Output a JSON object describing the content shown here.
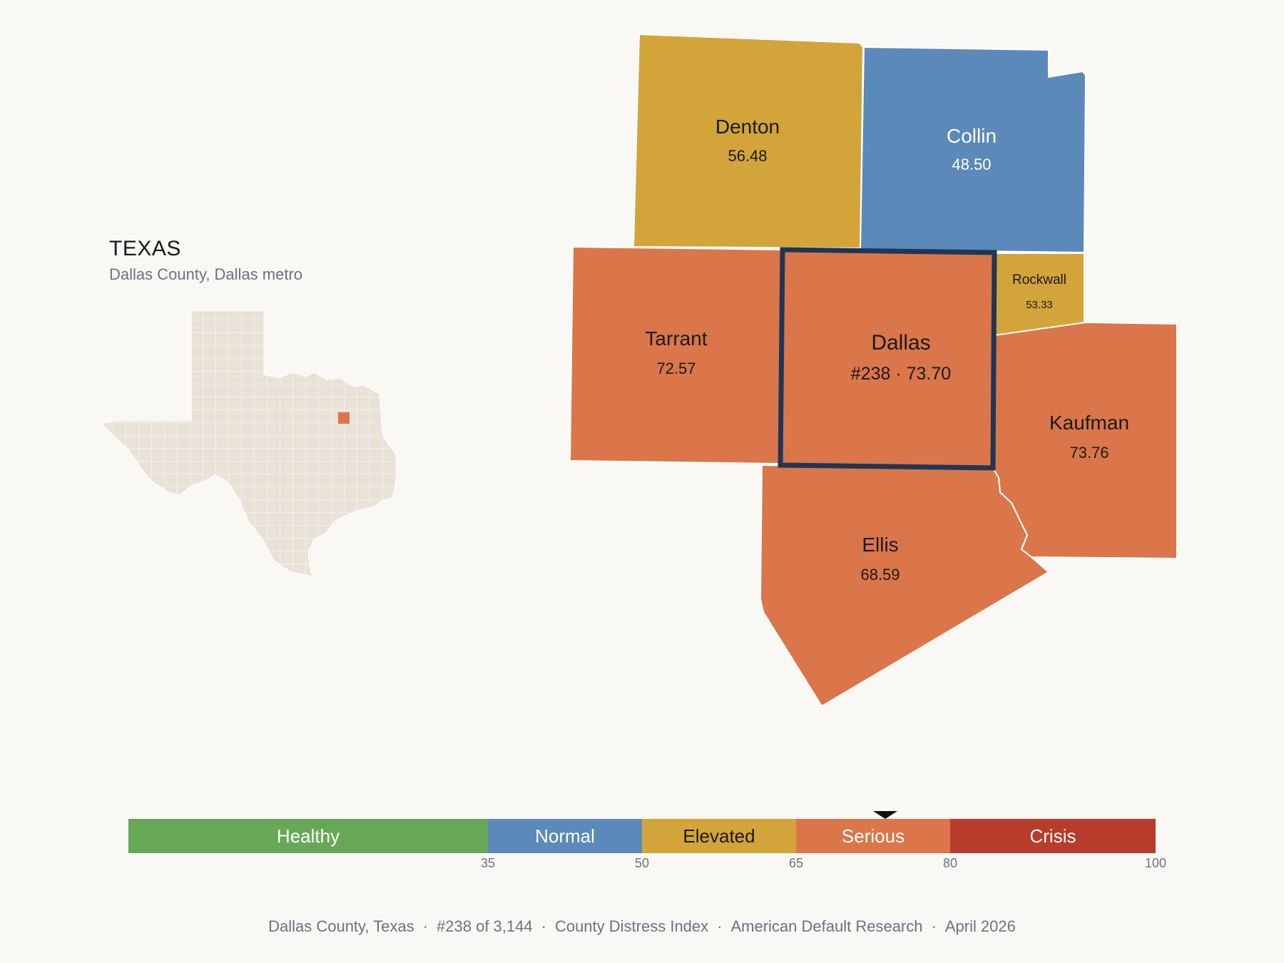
{
  "inset": {
    "title": "TEXAS",
    "subtitle": "Dallas County, Dallas metro"
  },
  "counties": {
    "denton": {
      "name": "Denton",
      "value": "56.48",
      "color": "#d2a43a"
    },
    "collin": {
      "name": "Collin",
      "value": "48.50",
      "color": "#5b89b9"
    },
    "tarrant": {
      "name": "Tarrant",
      "value": "72.57",
      "color": "#da764a"
    },
    "dallas": {
      "name": "Dallas",
      "value": "#238 · 73.70",
      "color": "#da764a",
      "outline": "#1f3656"
    },
    "rockwall": {
      "name": "Rockwall",
      "value": "53.33",
      "color": "#d2a43a"
    },
    "kaufman": {
      "name": "Kaufman",
      "value": "73.76",
      "color": "#da764a"
    },
    "ellis": {
      "name": "Ellis",
      "value": "68.59",
      "color": "#da764a"
    }
  },
  "scale": {
    "segments": [
      {
        "label": "Healthy",
        "from": 0,
        "to": 35,
        "color": "#66a858"
      },
      {
        "label": "Normal",
        "from": 35,
        "to": 50,
        "color": "#5b89b9"
      },
      {
        "label": "Elevated",
        "from": 50,
        "to": 65,
        "color": "#d2a43a"
      },
      {
        "label": "Serious",
        "from": 65,
        "to": 80,
        "color": "#da764a"
      },
      {
        "label": "Crisis",
        "from": 80,
        "to": 100,
        "color": "#b83c2b"
      }
    ],
    "ticks": [
      "35",
      "50",
      "65",
      "80",
      "100"
    ],
    "marker_value": 73.7
  },
  "footer": {
    "parts": [
      "Dallas County, Texas",
      "#238 of 3,144",
      "County Distress Index",
      "American Default Research",
      "April 2026"
    ]
  }
}
